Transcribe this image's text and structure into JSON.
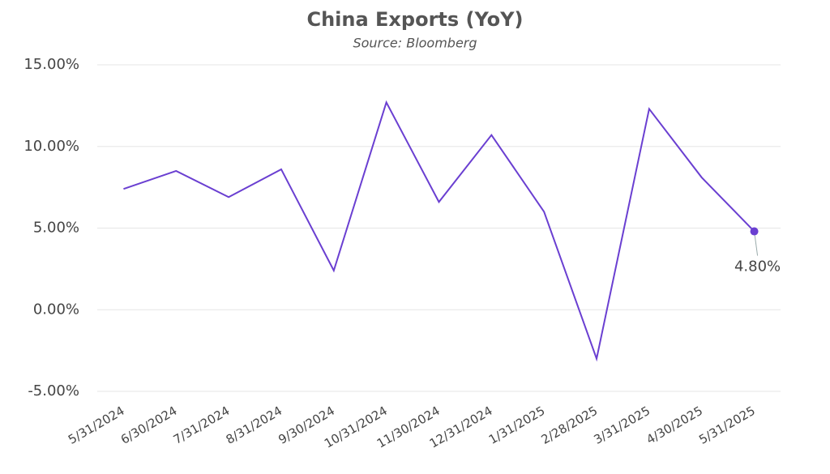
{
  "chart_data": {
    "type": "line",
    "title": "China Exports (YoY)",
    "subtitle": "Source: Bloomberg",
    "categories": [
      "5/31/2024",
      "6/30/2024",
      "7/31/2024",
      "8/31/2024",
      "9/30/2024",
      "10/31/2024",
      "11/30/2024",
      "12/31/2024",
      "1/31/2025",
      "2/28/2025",
      "3/31/2025",
      "4/30/2025",
      "5/31/2025"
    ],
    "series": [
      {
        "name": "China Exports (YoY)",
        "color": "#6a3fd1",
        "values": [
          7.4,
          8.5,
          6.9,
          8.6,
          2.4,
          12.7,
          6.6,
          10.7,
          6.0,
          -3.0,
          12.3,
          8.1,
          4.8
        ],
        "value_labels": [
          null,
          null,
          null,
          null,
          null,
          null,
          null,
          null,
          null,
          null,
          null,
          null,
          "4.80%"
        ]
      }
    ],
    "ylim": [
      -5,
      15
    ],
    "yticks": [
      {
        "value": -5,
        "label": "-5.00%"
      },
      {
        "value": 0,
        "label": "0.00%"
      },
      {
        "value": 5,
        "label": "5.00%"
      },
      {
        "value": 10,
        "label": "10.00%"
      },
      {
        "value": 15,
        "label": "15.00%"
      }
    ],
    "grid": true
  }
}
